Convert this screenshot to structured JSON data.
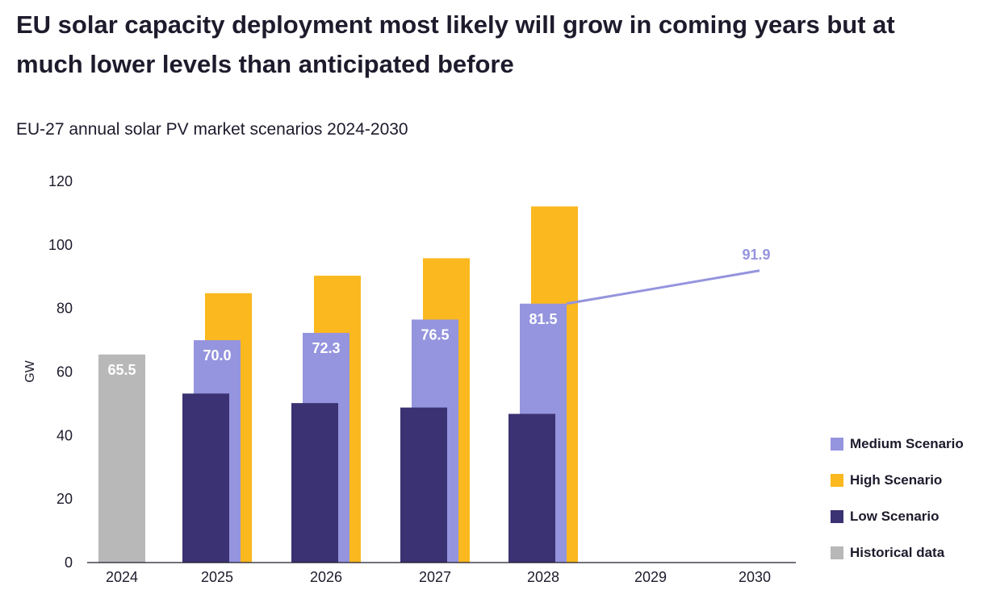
{
  "headline": "EU solar capacity deployment most likely will grow in coming years but at much lower levels than anticipated before",
  "chart_data": {
    "type": "bar",
    "title": "EU-27 annual solar PV market scenarios 2024-2030",
    "ylabel": "GW",
    "xlabel": "",
    "ylim": [
      0,
      120
    ],
    "yticks": [
      0,
      20,
      40,
      60,
      80,
      100,
      120
    ],
    "categories": [
      "2024",
      "2025",
      "2026",
      "2027",
      "2028",
      "2029",
      "2030"
    ],
    "series": [
      {
        "name": "Historical data",
        "color": "#b8b8b8",
        "values": [
          65.5,
          null,
          null,
          null,
          null,
          null,
          null
        ],
        "labels": [
          "65.5",
          null,
          null,
          null,
          null,
          null,
          null
        ]
      },
      {
        "name": "High Scenario",
        "color": "#fbb81f",
        "values": [
          null,
          84.8,
          90.3,
          95.8,
          112.1,
          null,
          null
        ],
        "labels": [
          null,
          null,
          null,
          null,
          null,
          null,
          null
        ]
      },
      {
        "name": "Medium Scenario",
        "color": "#9594de",
        "values": [
          null,
          70.0,
          72.3,
          76.5,
          81.5,
          null,
          91.9
        ],
        "labels": [
          null,
          "70.0",
          "72.3",
          "76.5",
          "81.5",
          null,
          "91.9"
        ]
      },
      {
        "name": "Low Scenario",
        "color": "#3a3272",
        "values": [
          null,
          53.2,
          50.2,
          48.8,
          46.8,
          null,
          null
        ],
        "labels": [
          null,
          null,
          null,
          null,
          null,
          null,
          null
        ]
      }
    ],
    "trend_line": {
      "series": "Medium Scenario",
      "from": {
        "x": "2028",
        "y": 81.5
      },
      "to": {
        "x": "2030",
        "y": 91.9
      },
      "label": "91.9"
    },
    "legend": {
      "position": "bottom-right",
      "items": [
        {
          "label": "Medium Scenario",
          "color": "#9594de"
        },
        {
          "label": "High Scenario",
          "color": "#fbb81f"
        },
        {
          "label": "Low Scenario",
          "color": "#3a3272"
        },
        {
          "label": "Historical data",
          "color": "#b8b8b8"
        }
      ]
    }
  }
}
